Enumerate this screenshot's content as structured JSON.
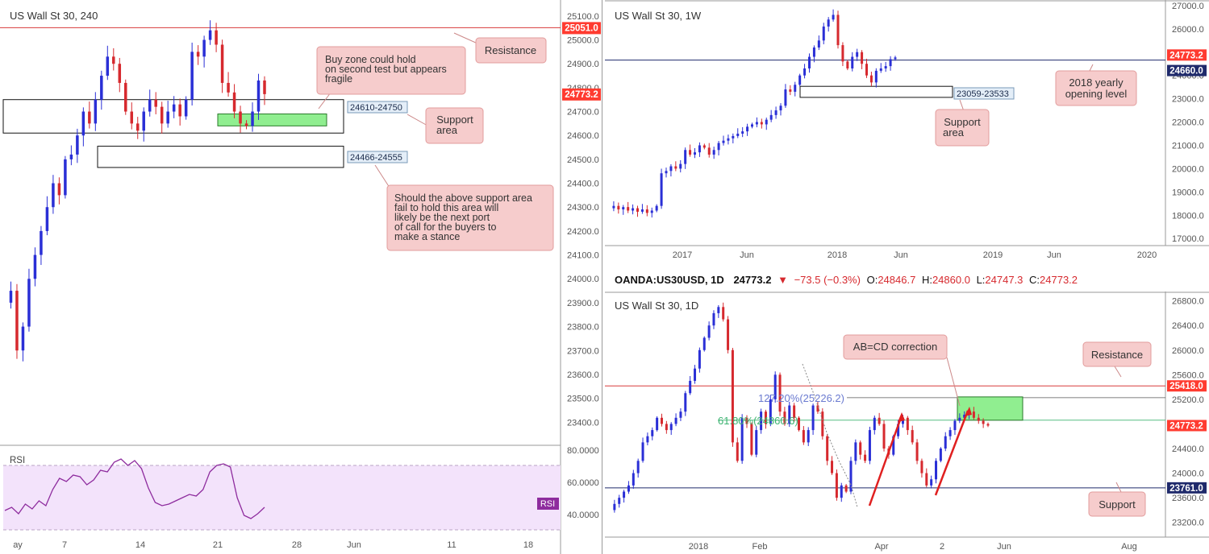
{
  "colors": {
    "up": "#2a2fd6",
    "down": "#d6292e",
    "resistance": "#d83a3a",
    "support_line": "#1f2a6b",
    "zone_green": "#90ee90",
    "callout_bg": "#f6cccc",
    "callout_border": "#e29c9c",
    "rsi_line": "#8e2c9e",
    "rsi_band": "#f3e3fb",
    "price_badge": "#ff3b30"
  },
  "panels": {
    "h4": {
      "title": "US Wall St 30, 240",
      "price_ticks": [
        "25100.0",
        "25000.0",
        "24900.0",
        "24800.0",
        "24700.0",
        "24600.0",
        "24500.0",
        "24400.0",
        "24300.0",
        "24200.0",
        "24100.0",
        "24000.0",
        "23900.0",
        "23800.0",
        "23700.0",
        "23600.0",
        "23500.0",
        "23400.0"
      ],
      "resistance_label": "25051.0",
      "last_price_label": "24773.2",
      "time_ticks": [
        "ay",
        "7",
        "14",
        "21",
        "28",
        "Jun",
        "11",
        "18"
      ],
      "zone_labels": [
        "24610-24750",
        "24466-24555"
      ],
      "callouts": {
        "resistance": "Resistance",
        "buy_zone": [
          "Buy zone could hold",
          "on second test but appears",
          "fragile"
        ],
        "support": [
          "Support",
          "area"
        ],
        "next_support": [
          "Should the above support area",
          "fail to hold this area will",
          "likely be the next port",
          "of call for the buyers to",
          "make a stance"
        ]
      },
      "rsi": {
        "label": "RSI",
        "badge": "RSI",
        "ticks": [
          "80.0000",
          "60.0000",
          "40.0000"
        ]
      }
    },
    "weekly": {
      "title": "US Wall St 30, 1W",
      "price_ticks": [
        "27000.0",
        "26000.0",
        "25000.0",
        "24000.0",
        "23000.0",
        "22000.0",
        "21000.0",
        "20000.0",
        "19000.0",
        "18000.0",
        "17000.0"
      ],
      "price_label_1": "24773.2",
      "price_label_2": "24660.0",
      "time_ticks": [
        "2017",
        "Jun",
        "2018",
        "Jun",
        "2019",
        "Jun",
        "2020"
      ],
      "zone_label": "23059-23533",
      "callouts": {
        "yearly": [
          "2018 yearly",
          "opening level"
        ],
        "support": [
          "Support",
          "area"
        ]
      }
    },
    "daily": {
      "header": {
        "symbol": "OANDA:US30USD, 1D",
        "price": "24773.2",
        "change": "−73.5 (−0.3%)",
        "o_label": "O:",
        "o": "24846.7",
        "h_label": "H:",
        "h": "24860.0",
        "l_label": "L:",
        "l": "24747.3",
        "c_label": "C:",
        "c": "24773.2"
      },
      "title": "US Wall St 30, 1D",
      "price_ticks": [
        "26800.0",
        "26400.0",
        "26000.0",
        "25600.0",
        "25200.0",
        "24800.0",
        "24400.0",
        "24000.0",
        "23600.0",
        "23200.0"
      ],
      "resistance_label": "25418.0",
      "last_price_label": "24773.2",
      "support_label": "23761.0",
      "time_ticks": [
        "2018",
        "Feb",
        "Apr",
        "2",
        "Jun",
        "Aug"
      ],
      "fib_1": "127.20%(25226.2)",
      "fib_2": "61.80%(24860.6)",
      "callouts": {
        "abcd": "AB=CD correction",
        "resistance": "Resistance",
        "support": "Support"
      }
    }
  },
  "chart_data": [
    {
      "type": "candlestick",
      "title": "US Wall St 30, 240",
      "ylim": [
        23320,
        25140
      ],
      "horizontal_levels": [
        {
          "name": "Resistance",
          "value": 25051.0
        }
      ],
      "zones": [
        [
          24610,
          24750
        ],
        [
          24466,
          24555
        ]
      ],
      "buy_zone": [
        24640,
        24690
      ],
      "last_price": 24773.2,
      "close_path": [
        23900,
        23950,
        23700,
        23800,
        24000,
        24100,
        24200,
        24300,
        24400,
        24350,
        24500,
        24520,
        24600,
        24700,
        24650,
        24750,
        24850,
        24930,
        24900,
        24820,
        24700,
        24650,
        24620,
        24700,
        24750,
        24720,
        24650,
        24700,
        24730,
        24680,
        24750,
        24950,
        24930,
        25000,
        25040,
        24980,
        24820,
        24780,
        24700,
        24650,
        24640,
        24700,
        24830,
        24773
      ]
    },
    {
      "type": "line",
      "title": "RSI",
      "ylim": [
        35,
        85
      ],
      "bands": [
        70,
        30
      ],
      "values": [
        42,
        44,
        40,
        46,
        43,
        48,
        45,
        55,
        62,
        60,
        64,
        63,
        58,
        61,
        67,
        66,
        72,
        74,
        70,
        73,
        68,
        56,
        47,
        45,
        46,
        48,
        50,
        52,
        51,
        55,
        66,
        70,
        71,
        69,
        50,
        39,
        37,
        40,
        44
      ]
    },
    {
      "type": "candlestick",
      "title": "US Wall St 30, 1W",
      "ylim": [
        16800,
        27100
      ],
      "horizontal_levels": [
        {
          "name": "2018 yearly opening level",
          "value": 24660.0
        }
      ],
      "zones": [
        [
          23059,
          23533
        ]
      ],
      "last_price": 24773.2,
      "close_path": [
        18300,
        18400,
        18250,
        18350,
        18200,
        18300,
        18150,
        18250,
        18100,
        18200,
        18400,
        19800,
        19900,
        20100,
        20000,
        20200,
        20800,
        20600,
        20700,
        21000,
        20900,
        20600,
        20800,
        21100,
        21200,
        21300,
        21400,
        21500,
        21600,
        21800,
        21900,
        22000,
        21900,
        22100,
        22300,
        22500,
        22700,
        23400,
        23300,
        23600,
        24000,
        24300,
        24800,
        25200,
        25500,
        26100,
        26400,
        26600,
        25300,
        24600,
        24300,
        24800,
        25000,
        24500,
        24000,
        23700,
        24200,
        24300,
        24400,
        24700,
        24773
      ]
    },
    {
      "type": "candlestick",
      "title": "US Wall St 30, 1D",
      "ylim": [
        23000,
        26900
      ],
      "horizontal_levels": [
        {
          "name": "Resistance",
          "value": 25418.0
        },
        {
          "name": "Support",
          "value": 23761.0
        }
      ],
      "fib_levels": [
        {
          "name": "127.20%",
          "value": 25226.2
        },
        {
          "name": "61.80%",
          "value": 24860.6
        }
      ],
      "last_price": 24773.2,
      "close_path": [
        23400,
        23500,
        23600,
        23700,
        23800,
        24000,
        24200,
        24500,
        24600,
        24700,
        24900,
        24800,
        24700,
        24800,
        24900,
        25000,
        25300,
        25500,
        25700,
        26000,
        26200,
        26400,
        26600,
        26700,
        26500,
        26000,
        24500,
        24200,
        24900,
        24800,
        24300,
        24700,
        25000,
        24800,
        25200,
        25600,
        25000,
        24800,
        25100,
        24900,
        24700,
        24500,
        24700,
        25100,
        25000,
        24600,
        24200,
        24000,
        23600,
        23800,
        23700,
        24200,
        24500,
        24300,
        24200,
        24700,
        24900,
        24800,
        24400,
        24300,
        24600,
        24800,
        24900,
        24700,
        24500,
        24200,
        24000,
        23800,
        23900,
        24200,
        24400,
        24600,
        24700,
        24850,
        24900,
        24950,
        25000,
        24900,
        24850,
        24800,
        24773
      ]
    }
  ]
}
